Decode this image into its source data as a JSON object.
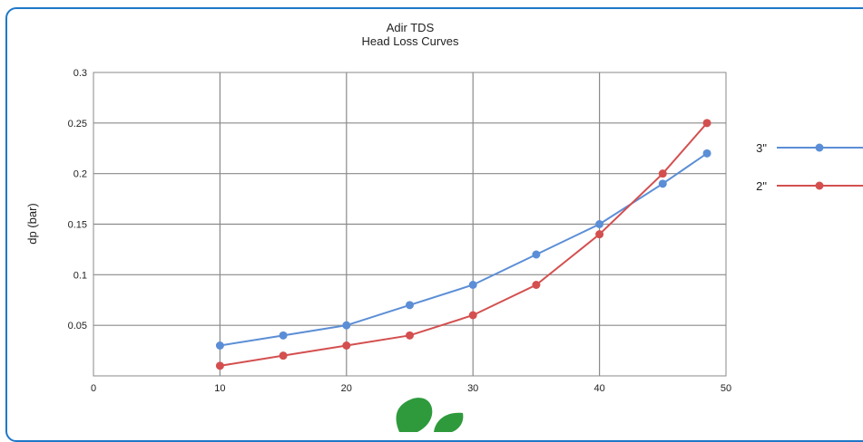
{
  "colors": {
    "frame": "#1f78c8",
    "grid": "#8a8a8a",
    "axis": "#555555",
    "series_3in": "#5b8ed6",
    "series_2in": "#d44f4f",
    "leaf": "#2e9a3c"
  },
  "chart_data": {
    "type": "line",
    "title": "Adir TDS",
    "subtitle": "Head Loss Curves",
    "xlabel": "",
    "ylabel": "dp (bar)",
    "xlim": [
      0,
      50
    ],
    "ylim": [
      0,
      0.3
    ],
    "x_ticks": [
      "0",
      "10",
      "20",
      "30",
      "40",
      "50"
    ],
    "y_ticks": [
      "0.05",
      "0.1",
      "0.15",
      "0.2",
      "0.25",
      "0.3"
    ],
    "grid": true,
    "legend_position": "right",
    "series": [
      {
        "name": "3\"",
        "color": "#5b8ed6",
        "x": [
          10,
          15,
          20,
          25,
          30,
          35,
          40,
          45,
          48.5
        ],
        "y": [
          0.03,
          0.04,
          0.05,
          0.07,
          0.09,
          0.12,
          0.15,
          0.19,
          0.22
        ]
      },
      {
        "name": "2\"",
        "color": "#d44f4f",
        "x": [
          10,
          15,
          20,
          25,
          30,
          35,
          40,
          45,
          48.5
        ],
        "y": [
          0.01,
          0.02,
          0.03,
          0.04,
          0.06,
          0.09,
          0.14,
          0.2,
          0.25
        ]
      }
    ]
  }
}
